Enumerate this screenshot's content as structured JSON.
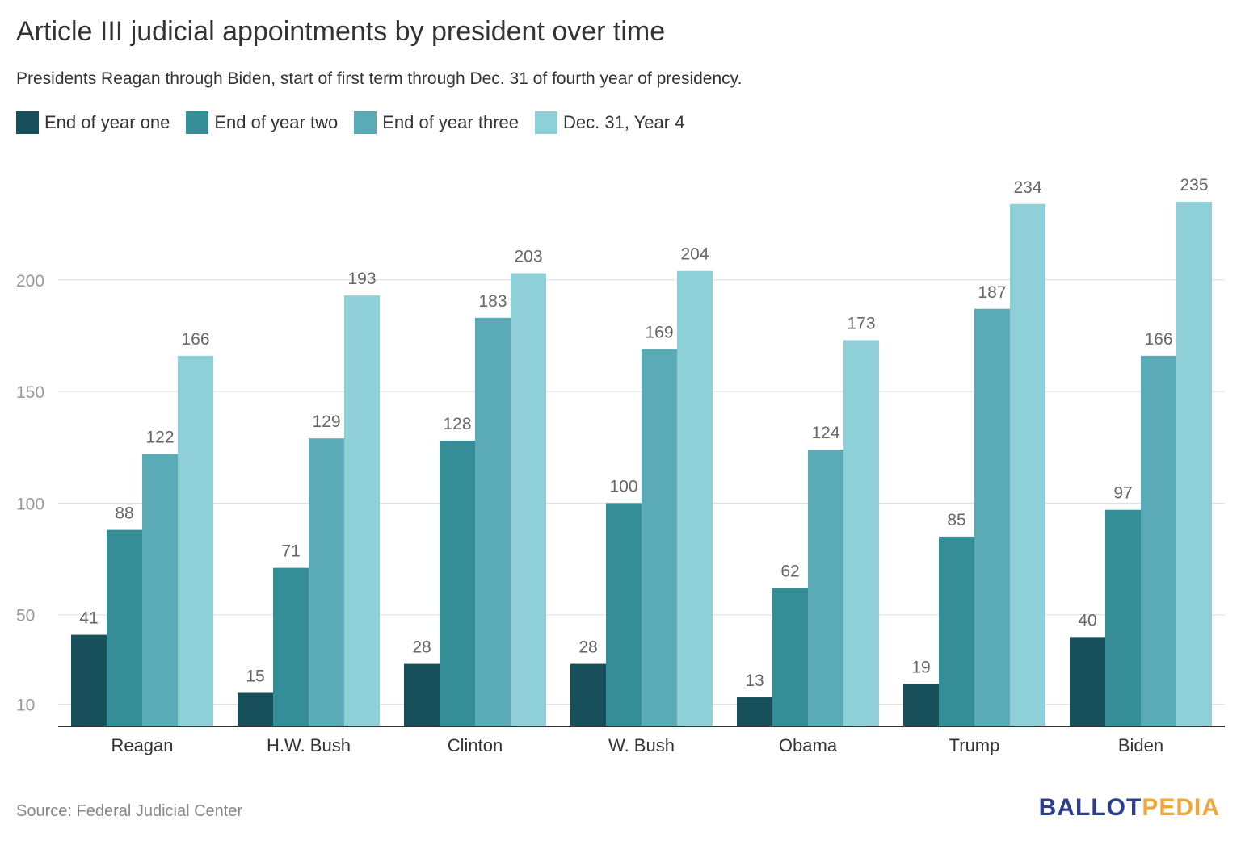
{
  "header": {
    "title": "Article III judicial appointments by president over time",
    "subtitle": "Presidents Reagan through Biden, start of first term through Dec. 31 of fourth year of presidency."
  },
  "legend": {
    "items": [
      {
        "label": "End of year one",
        "color": "#17505a"
      },
      {
        "label": "End of year two",
        "color": "#358d97"
      },
      {
        "label": "End of year three",
        "color": "#5aabb7"
      },
      {
        "label": "Dec. 31, Year 4",
        "color": "#8ecfd8"
      }
    ]
  },
  "footer": {
    "source": "Source: Federal Judicial Center",
    "logo_part1": "BALLOT",
    "logo_part2": "PEDIA"
  },
  "chart_data": {
    "type": "bar",
    "categories": [
      "Reagan",
      "H.W. Bush",
      "Clinton",
      "W. Bush",
      "Obama",
      "Trump",
      "Biden"
    ],
    "series": [
      {
        "name": "End of year one",
        "values": [
          41,
          15,
          28,
          28,
          13,
          19,
          40
        ],
        "color": "#17505a"
      },
      {
        "name": "End of year two",
        "values": [
          88,
          71,
          128,
          100,
          62,
          85,
          97
        ],
        "color": "#358d97"
      },
      {
        "name": "End of year three",
        "values": [
          122,
          129,
          183,
          169,
          124,
          187,
          166
        ],
        "color": "#5aabb7"
      },
      {
        "name": "Dec. 31, Year 4",
        "values": [
          166,
          193,
          203,
          204,
          173,
          234,
          235
        ],
        "color": "#8ecfd8"
      }
    ],
    "yticks": [
      10,
      50,
      100,
      150,
      200
    ],
    "ylim": [
      0,
      250
    ],
    "grid": true,
    "legend_position": "top-left",
    "title": "Article III judicial appointments by president over time",
    "xlabel": "",
    "ylabel": ""
  }
}
